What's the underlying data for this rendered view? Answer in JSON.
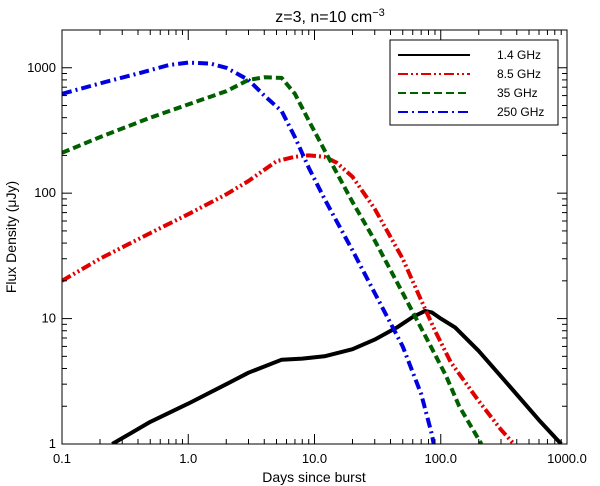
{
  "chart_data": {
    "type": "line",
    "title_main": "z=3, n=10 cm",
    "title_sup": "−3",
    "xlabel": "Days since burst",
    "ylabel": "Flux Density (μJy)",
    "x_scale": "log",
    "y_scale": "log",
    "xlim": [
      0.1,
      1000
    ],
    "ylim": [
      1,
      2000
    ],
    "x_ticks": [
      {
        "value": 0.1,
        "label": "0.1"
      },
      {
        "value": 1,
        "label": "1.0"
      },
      {
        "value": 10,
        "label": "10.0"
      },
      {
        "value": 100,
        "label": "100.0"
      },
      {
        "value": 1000,
        "label": "1000.0"
      }
    ],
    "y_ticks": [
      {
        "value": 1,
        "label": "1"
      },
      {
        "value": 10,
        "label": "10"
      },
      {
        "value": 100,
        "label": "100"
      },
      {
        "value": 1000,
        "label": "1000"
      }
    ],
    "grid": false,
    "legend_position": "top-right",
    "series": [
      {
        "name": "1.4 GHz",
        "color": "#000000",
        "dash": "solid",
        "points": [
          [
            0.25,
            1.0
          ],
          [
            0.5,
            1.5
          ],
          [
            1.0,
            2.1
          ],
          [
            2.0,
            3.0
          ],
          [
            3.0,
            3.7
          ],
          [
            5.5,
            4.7
          ],
          [
            8.0,
            4.8
          ],
          [
            12.0,
            5.0
          ],
          [
            20.0,
            5.7
          ],
          [
            30.0,
            6.8
          ],
          [
            45.0,
            8.5
          ],
          [
            60.0,
            10.3
          ],
          [
            75.0,
            11.5
          ],
          [
            85.0,
            11.2
          ],
          [
            100.0,
            10.0
          ],
          [
            130.0,
            8.5
          ],
          [
            200.0,
            5.5
          ],
          [
            350.0,
            2.9
          ],
          [
            600.0,
            1.55
          ],
          [
            900.0,
            1.0
          ]
        ]
      },
      {
        "name": "8.5 GHz",
        "color": "#e00000",
        "dash": "dash-dot-dot",
        "points": [
          [
            0.1,
            20.0
          ],
          [
            0.2,
            30.0
          ],
          [
            0.5,
            48.0
          ],
          [
            1.0,
            68.0
          ],
          [
            2.0,
            98.0
          ],
          [
            3.0,
            125.0
          ],
          [
            5.0,
            180.0
          ],
          [
            7.0,
            195.0
          ],
          [
            9.0,
            200.0
          ],
          [
            12.0,
            195.0
          ],
          [
            15.0,
            175.0
          ],
          [
            20.0,
            135.0
          ],
          [
            30.0,
            75.0
          ],
          [
            50.0,
            30.0
          ],
          [
            70.0,
            14.0
          ],
          [
            90.0,
            8.0
          ],
          [
            120.0,
            4.5
          ],
          [
            200.0,
            2.2
          ],
          [
            300.0,
            1.3
          ],
          [
            380.0,
            1.0
          ]
        ]
      },
      {
        "name": "35 GHz",
        "color": "#006000",
        "dash": "dashed",
        "points": [
          [
            0.1,
            210.0
          ],
          [
            0.2,
            280.0
          ],
          [
            0.5,
            400.0
          ],
          [
            1.0,
            510.0
          ],
          [
            2.0,
            650.0
          ],
          [
            3.0,
            800.0
          ],
          [
            4.0,
            840.0
          ],
          [
            5.5,
            830.0
          ],
          [
            7.0,
            620.0
          ],
          [
            9.0,
            380.0
          ],
          [
            12.0,
            220.0
          ],
          [
            20.0,
            85.0
          ],
          [
            30.0,
            42.0
          ],
          [
            50.0,
            16.0
          ],
          [
            80.0,
            6.5
          ],
          [
            110.0,
            3.5
          ],
          [
            140.0,
            2.0
          ],
          [
            180.0,
            1.3
          ],
          [
            210.0,
            1.0
          ]
        ]
      },
      {
        "name": "250 GHz",
        "color": "#0000e0",
        "dash": "dash-dot",
        "points": [
          [
            0.1,
            620.0
          ],
          [
            0.2,
            750.0
          ],
          [
            0.4,
            900.0
          ],
          [
            0.7,
            1050.0
          ],
          [
            1.0,
            1100.0
          ],
          [
            1.5,
            1080.0
          ],
          [
            2.0,
            1000.0
          ],
          [
            3.0,
            800.0
          ],
          [
            4.0,
            600.0
          ],
          [
            5.5,
            450.0
          ],
          [
            7.0,
            280.0
          ],
          [
            9.0,
            160.0
          ],
          [
            12.0,
            90.0
          ],
          [
            20.0,
            35.0
          ],
          [
            30.0,
            16.0
          ],
          [
            50.0,
            6.0
          ],
          [
            70.0,
            2.5
          ],
          [
            85.0,
            1.2
          ],
          [
            88.0,
            1.0
          ]
        ]
      }
    ]
  }
}
